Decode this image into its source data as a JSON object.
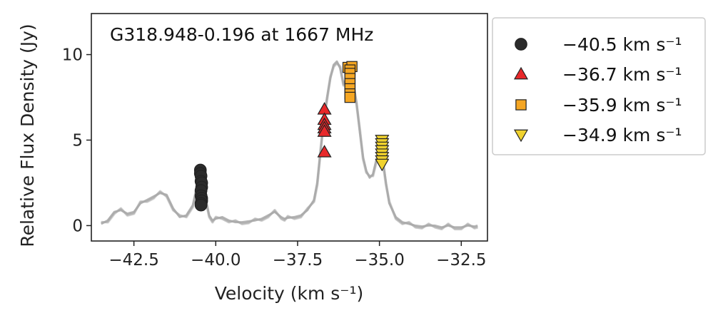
{
  "chart_data": {
    "type": "scatter",
    "title": "G318.948-0.196 at 1667 MHz",
    "xlabel": "Velocity (km s⁻¹)",
    "ylabel": "Relative Flux Density (Jy)",
    "xlim": [
      -43.8,
      -31.7
    ],
    "ylim": [
      -0.9,
      12.4
    ],
    "xticks": [
      -42.5,
      -40.0,
      -37.5,
      -35.0,
      -32.5
    ],
    "xtick_labels": [
      "−42.5",
      "−40.0",
      "−37.5",
      "−35.0",
      "−32.5"
    ],
    "yticks": [
      0,
      5,
      10
    ],
    "ytick_labels": [
      "0",
      "5",
      "10"
    ],
    "legend_position": "outside-right",
    "spectrum": {
      "color": "#a9a9a9",
      "x": [
        -43.5,
        -43.3,
        -43.1,
        -42.9,
        -42.7,
        -42.5,
        -42.3,
        -42.1,
        -41.9,
        -41.7,
        -41.5,
        -41.3,
        -41.1,
        -40.9,
        -40.7,
        -40.6,
        -40.5,
        -40.4,
        -40.3,
        -40.2,
        -40.1,
        -40.0,
        -39.8,
        -39.6,
        -39.4,
        -39.2,
        -39.0,
        -38.8,
        -38.6,
        -38.4,
        -38.2,
        -38.0,
        -37.9,
        -37.8,
        -37.6,
        -37.4,
        -37.2,
        -37.0,
        -36.9,
        -36.8,
        -36.7,
        -36.6,
        -36.5,
        -36.4,
        -36.3,
        -36.2,
        -36.1,
        -36.0,
        -35.9,
        -35.8,
        -35.7,
        -35.6,
        -35.5,
        -35.4,
        -35.3,
        -35.2,
        -35.1,
        -35.0,
        -34.9,
        -34.8,
        -34.7,
        -34.5,
        -34.3,
        -34.1,
        -33.9,
        -33.7,
        -33.5,
        -33.3,
        -33.1,
        -32.9,
        -32.7,
        -32.5,
        -32.3,
        -32.1,
        -32.0
      ],
      "y": [
        0.1,
        0.3,
        0.8,
        0.9,
        0.7,
        0.8,
        1.3,
        1.5,
        1.7,
        1.9,
        1.8,
        1.0,
        0.5,
        0.6,
        1.2,
        2.0,
        2.6,
        2.4,
        1.4,
        0.6,
        0.3,
        0.4,
        0.5,
        0.3,
        0.2,
        0.2,
        0.25,
        0.3,
        0.4,
        0.6,
        0.8,
        0.5,
        0.4,
        0.45,
        0.5,
        0.6,
        0.9,
        1.5,
        2.5,
        4.3,
        6.2,
        7.5,
        8.6,
        9.4,
        9.6,
        9.2,
        8.3,
        8.6,
        9.0,
        8.4,
        7.2,
        5.5,
        4.0,
        3.2,
        2.8,
        3.0,
        3.8,
        4.3,
        3.9,
        2.5,
        1.3,
        0.5,
        0.2,
        0.1,
        0.0,
        -0.05,
        0.0,
        0.0,
        -0.1,
        0.0,
        -0.1,
        -0.1,
        0.0,
        -0.05,
        0.0
      ]
    },
    "series": [
      {
        "name": "−40.5 km s⁻¹",
        "marker": "circle",
        "color": "#2b2b2b",
        "x": [
          -40.47,
          -40.47,
          -40.45,
          -40.45,
          -40.43,
          -40.43,
          -40.45,
          -40.45,
          -40.43,
          -40.43,
          -40.45,
          -40.45
        ],
        "y": [
          3.25,
          3.05,
          2.9,
          2.6,
          2.5,
          2.25,
          2.05,
          1.75,
          1.6,
          1.45,
          1.3,
          1.2
        ]
      },
      {
        "name": "−36.7 km s⁻¹",
        "marker": "triangle-up",
        "color": "#e8282a",
        "x": [
          -36.68,
          -36.68,
          -36.68,
          -36.68,
          -36.68,
          -36.68
        ],
        "y": [
          6.8,
          6.2,
          5.9,
          5.7,
          5.5,
          4.3
        ]
      },
      {
        "name": "−35.9 km s⁻¹",
        "marker": "square",
        "color": "#f5a623",
        "x": [
          -35.96,
          -35.84,
          -35.9,
          -35.9,
          -35.9,
          -35.9,
          -35.9,
          -35.9,
          -35.9
        ],
        "y": [
          9.25,
          9.3,
          9.1,
          8.9,
          8.6,
          8.3,
          8.0,
          7.7,
          7.5
        ]
      },
      {
        "name": "−34.9 km s⁻¹",
        "marker": "triangle-down",
        "color": "#f0d22e",
        "x": [
          -34.92,
          -34.92,
          -34.92,
          -34.92,
          -34.92,
          -34.92,
          -34.92,
          -34.92
        ],
        "y": [
          5.0,
          4.8,
          4.6,
          4.4,
          4.2,
          4.0,
          3.8,
          3.6
        ]
      }
    ]
  }
}
